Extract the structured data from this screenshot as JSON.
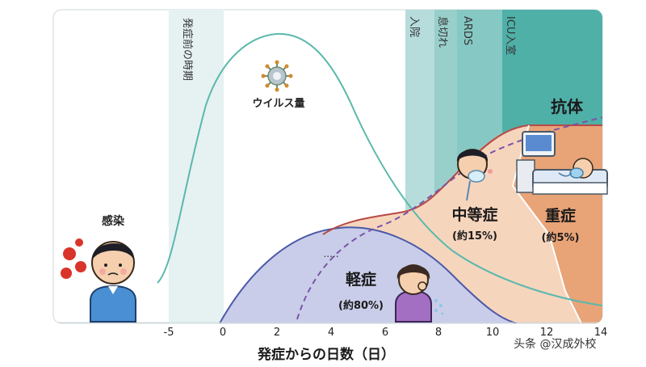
{
  "phases": {
    "presymptomatic": "発症前の時期",
    "hospitalization": "入院",
    "dyspnea": "息切れ",
    "ards": "ARDS",
    "icu": "ICU入室"
  },
  "labels": {
    "virus": "ウイルス量",
    "antibody": "抗体",
    "infection": "感染",
    "mild": "軽症",
    "mild_pct": "(約80%)",
    "moderate": "中等症",
    "moderate_pct": "(約15%)",
    "severe": "重症",
    "severe_pct": "(約5%)",
    "ellipsis": "....."
  },
  "axis": {
    "title": "発症からの日数（日）",
    "ticks": [
      "-5",
      "0",
      "2",
      "4",
      "6",
      "8",
      "10",
      "12",
      "14"
    ]
  },
  "watermark": "头条 @汉成外校",
  "colors": {
    "mild_fill": "#c9cde9",
    "moderate_fill": "#f6d5bd",
    "severe_fill": "#e8a377",
    "virus_curve": "#5ab9ac",
    "antibody_curve": "#7b55a8",
    "severity_boundary": "#b74a45",
    "phase_light": "#e6f1f2",
    "phase_teal_1": "#b6dcdb",
    "phase_teal_2": "#86c8c3",
    "phase_teal_3": "#4fb0a8"
  }
}
